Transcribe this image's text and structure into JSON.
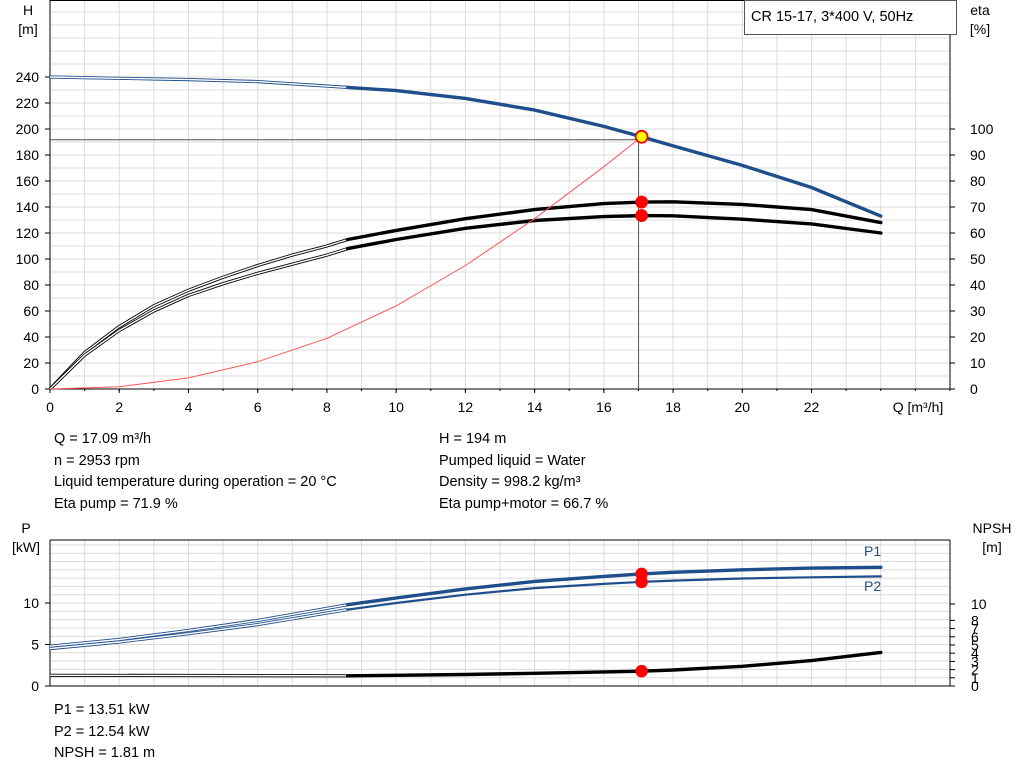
{
  "chart_data": [
    {
      "type": "line",
      "title": "CR 15-17, 3*400 V, 50Hz",
      "xlabel": "Q [m³/h]",
      "x_ticks": [
        "0",
        "2",
        "4",
        "6",
        "8",
        "10",
        "12",
        "14",
        "16",
        "18",
        "20",
        "22"
      ],
      "xlim": [
        0,
        26
      ],
      "y_left": {
        "label_top": "H",
        "label_unit": "[m]",
        "ylim": [
          0,
          260
        ],
        "ticks": [
          "0",
          "20",
          "40",
          "60",
          "80",
          "100",
          "120",
          "140",
          "160",
          "180",
          "200",
          "220",
          "240"
        ]
      },
      "y_right": {
        "label_top": "eta",
        "label_unit": "[%]",
        "ylim": [
          0,
          130
        ],
        "ticks": [
          "0",
          "10",
          "20",
          "30",
          "40",
          "50",
          "60",
          "70",
          "80",
          "90",
          "100"
        ]
      },
      "grid": true,
      "operating_point": {
        "q": 17.09,
        "h": 194
      },
      "series": [
        {
          "axis": "left",
          "color": "#1f4e8c",
          "extrapolated": [
            [
              0,
              240
            ],
            [
              2,
              239
            ],
            [
              4,
              238
            ],
            [
              6,
              236.5
            ],
            [
              8.6,
              232
            ]
          ],
          "solid": [
            [
              8.6,
              232
            ],
            [
              10,
              229.5
            ],
            [
              12,
              223.5
            ],
            [
              14,
              214.5
            ],
            [
              16,
              202
            ],
            [
              17.09,
              194
            ],
            [
              18,
              187
            ],
            [
              20,
              172
            ],
            [
              22,
              155
            ],
            [
              24,
              133
            ]
          ]
        },
        {
          "axis": "right",
          "color": "#000000",
          "extrapolated": [
            [
              0,
              0
            ],
            [
              1,
              14
            ],
            [
              2,
              24
            ],
            [
              3,
              32
            ],
            [
              4,
              38
            ],
            [
              5,
              43
            ],
            [
              6,
              47.5
            ],
            [
              7,
              51.5
            ],
            [
              8,
              55
            ],
            [
              8.6,
              57.5
            ]
          ],
          "solid": [
            [
              8.6,
              57.5
            ],
            [
              10,
              61
            ],
            [
              12,
              65.5
            ],
            [
              14,
              69
            ],
            [
              16,
              71.3
            ],
            [
              17.09,
              71.9
            ],
            [
              18,
              72
            ],
            [
              20,
              71
            ],
            [
              22,
              69
            ],
            [
              24,
              64
            ]
          ]
        },
        {
          "axis": "right",
          "color": "#000000",
          "extrapolated": [
            [
              0,
              0
            ],
            [
              1,
              13
            ],
            [
              2,
              22.5
            ],
            [
              3,
              30
            ],
            [
              4,
              36
            ],
            [
              5,
              40.5
            ],
            [
              6,
              44.5
            ],
            [
              7,
              48
            ],
            [
              8,
              51.5
            ],
            [
              8.6,
              54
            ]
          ],
          "solid": [
            [
              8.6,
              54
            ],
            [
              10,
              57.5
            ],
            [
              12,
              61.8
            ],
            [
              14,
              64.8
            ],
            [
              16,
              66.3
            ],
            [
              17.09,
              66.7
            ],
            [
              18,
              66.6
            ],
            [
              20,
              65.3
            ],
            [
              22,
              63.5
            ],
            [
              24,
              60
            ]
          ]
        },
        {
          "axis": "left",
          "color": "#ff5555",
          "kind": "system",
          "points": [
            [
              0,
              0
            ],
            [
              2,
              1.8
            ],
            [
              4,
              8.5
            ],
            [
              6,
              21
            ],
            [
              8,
              39
            ],
            [
              10,
              64
            ],
            [
              12,
              95
            ],
            [
              14,
              131
            ],
            [
              16,
              171
            ],
            [
              17.09,
              194
            ]
          ]
        }
      ],
      "markers": [
        {
          "axis": "left",
          "q": 17.09,
          "v": 194,
          "fill": "#ffff00",
          "stroke": "#ff0000"
        },
        {
          "axis": "right",
          "q": 17.09,
          "v": 71.9,
          "fill": "#ff0000",
          "stroke": "#ff0000"
        },
        {
          "axis": "right",
          "q": 17.09,
          "v": 66.7,
          "fill": "#ff0000",
          "stroke": "#ff0000"
        }
      ]
    },
    {
      "type": "line",
      "xlim": [
        0,
        26
      ],
      "y_left": {
        "label_top": "P",
        "label_unit": "[kW]",
        "ylim": [
          0,
          17
        ],
        "ticks": [
          "0",
          "5",
          "10"
        ]
      },
      "y_right": {
        "label_top": "NPSH",
        "label_unit": "[m]",
        "ylim": [
          0,
          16
        ],
        "ticks": [
          "0",
          "1",
          "2",
          "3",
          "4",
          "5",
          "6",
          "7",
          "8",
          "10"
        ]
      },
      "grid": true,
      "series": [
        {
          "name": "P1",
          "axis": "left",
          "color": "#1f4e8c",
          "extrapolated": [
            [
              0,
              4.8
            ],
            [
              2,
              5.6
            ],
            [
              4,
              6.7
            ],
            [
              6,
              7.9
            ],
            [
              8.6,
              9.8
            ]
          ],
          "solid": [
            [
              8.6,
              9.8
            ],
            [
              10,
              10.6
            ],
            [
              12,
              11.7
            ],
            [
              14,
              12.6
            ],
            [
              16,
              13.2
            ],
            [
              17.09,
              13.51
            ],
            [
              18,
              13.7
            ],
            [
              20,
              14.0
            ],
            [
              22,
              14.2
            ],
            [
              24,
              14.3
            ]
          ]
        },
        {
          "name": "P2",
          "axis": "left",
          "color": "#1f4e8c",
          "extrapolated": [
            [
              0,
              4.5
            ],
            [
              2,
              5.3
            ],
            [
              4,
              6.3
            ],
            [
              6,
              7.4
            ],
            [
              8.6,
              9.2
            ]
          ],
          "solid": [
            [
              8.6,
              9.2
            ],
            [
              10,
              10.0
            ],
            [
              12,
              11.0
            ],
            [
              14,
              11.8
            ],
            [
              16,
              12.3
            ],
            [
              17.09,
              12.54
            ],
            [
              18,
              12.7
            ],
            [
              20,
              12.95
            ],
            [
              22,
              13.1
            ],
            [
              24,
              13.2
            ]
          ]
        },
        {
          "name": "NPSH",
          "axis": "right",
          "color": "#000000",
          "extrapolated": [
            [
              0,
              1.3
            ],
            [
              4,
              1.28
            ],
            [
              8.6,
              1.24
            ]
          ],
          "solid": [
            [
              8.6,
              1.24
            ],
            [
              10,
              1.3
            ],
            [
              12,
              1.4
            ],
            [
              14,
              1.55
            ],
            [
              16,
              1.72
            ],
            [
              17.09,
              1.81
            ],
            [
              18,
              1.95
            ],
            [
              20,
              2.4
            ],
            [
              22,
              3.1
            ],
            [
              24,
              4.1
            ]
          ]
        }
      ],
      "markers": [
        {
          "axis": "left",
          "q": 17.09,
          "v": 13.51,
          "fill": "#ff0000",
          "stroke": "#ff0000"
        },
        {
          "axis": "left",
          "q": 17.09,
          "v": 12.54,
          "fill": "#ff0000",
          "stroke": "#ff0000"
        },
        {
          "axis": "right",
          "q": 17.09,
          "v": 1.81,
          "fill": "#ff0000",
          "stroke": "#ff0000"
        }
      ]
    }
  ],
  "info_top_left": [
    "Q = 17.09 m³/h",
    "n = 2953 rpm",
    "Liquid temperature during operation = 20 °C",
    "Eta pump = 71.9 %"
  ],
  "info_top_right": [
    "H = 194 m",
    "Pumped liquid = Water",
    "Density = 998.2 kg/m³",
    "Eta pump+motor = 66.7 %"
  ],
  "info_bottom": [
    "P1 = 13.51 kW",
    "P2 = 12.54 kW",
    "NPSH = 1.81 m"
  ]
}
